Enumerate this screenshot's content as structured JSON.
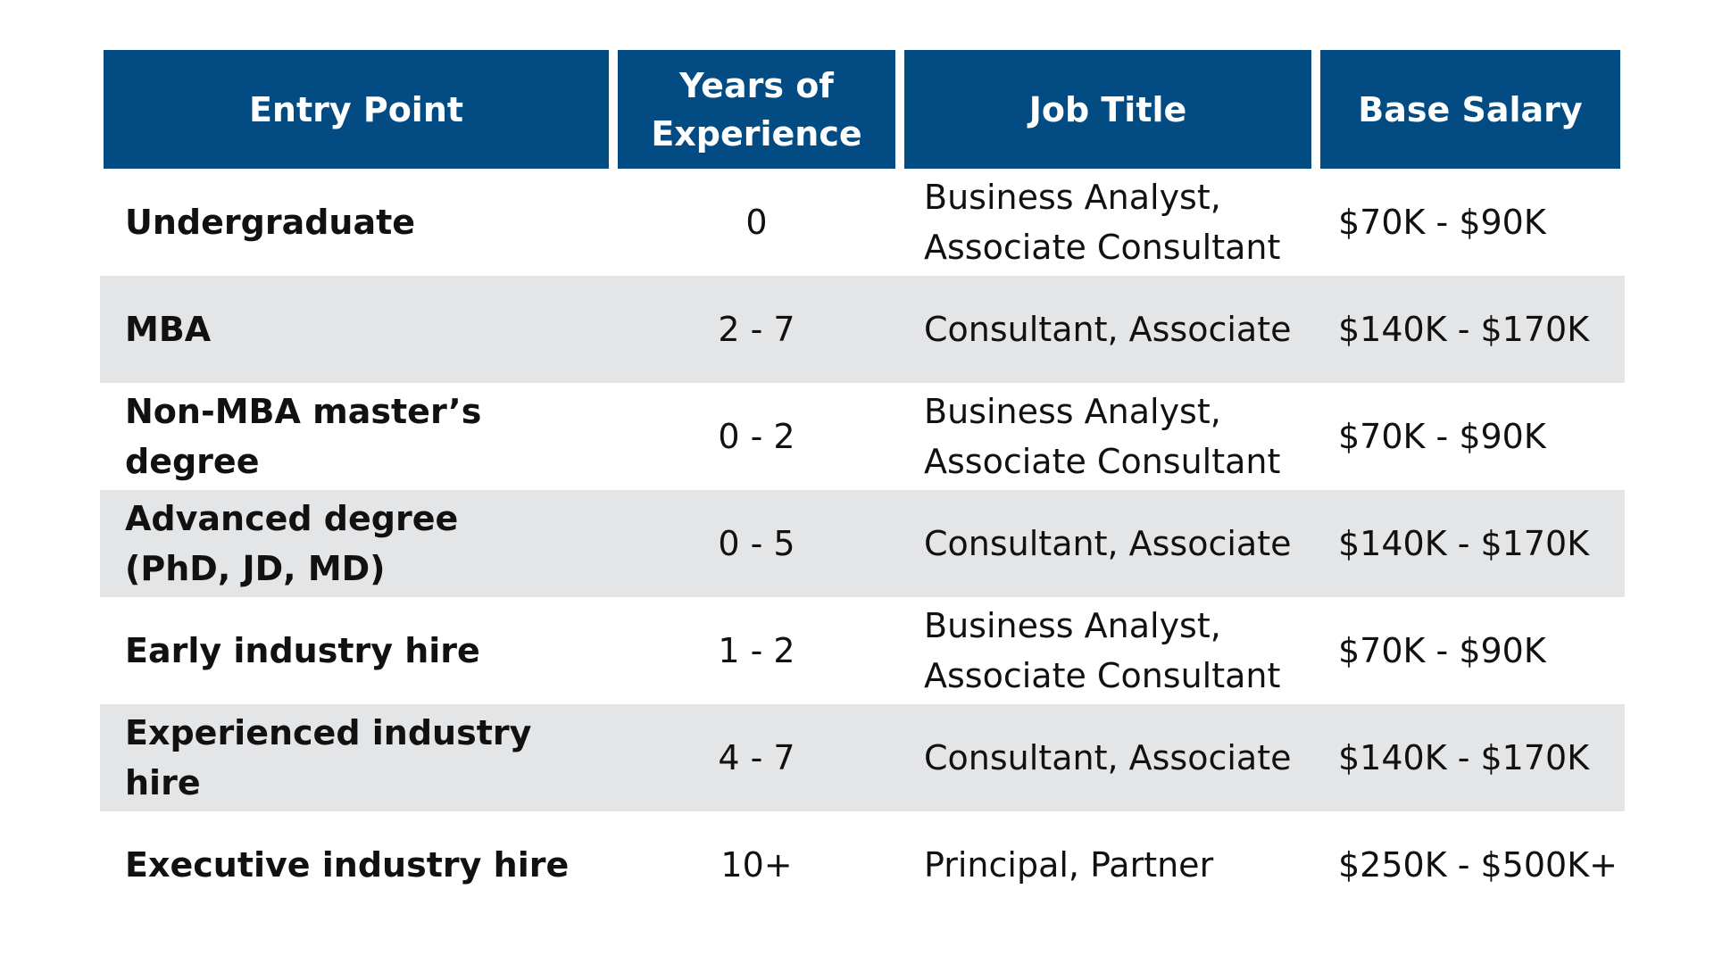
{
  "chart_data": {
    "type": "table",
    "columns": [
      "Entry Point",
      "Years of Experience",
      "Job Title",
      "Base Salary"
    ],
    "rows": [
      {
        "entry_point": "Undergraduate",
        "years": "0",
        "job_title": "Business Analyst,\nAssociate Consultant",
        "salary": "$70K - $90K"
      },
      {
        "entry_point": "MBA",
        "years": "2 - 7",
        "job_title": "Consultant, Associate",
        "salary": "$140K - $170K"
      },
      {
        "entry_point": "Non-MBA master’s degree",
        "years": "0 - 2",
        "job_title": "Business Analyst,\nAssociate Consultant",
        "salary": "$70K - $90K"
      },
      {
        "entry_point": "Advanced degree\n(PhD, JD, MD)",
        "years": "0 - 5",
        "job_title": "Consultant, Associate",
        "salary": "$140K - $170K"
      },
      {
        "entry_point": "Early industry hire",
        "years": "1 - 2",
        "job_title": "Business Analyst,\nAssociate Consultant",
        "salary": "$70K - $90K"
      },
      {
        "entry_point": "Experienced industry hire",
        "years": "4 - 7",
        "job_title": "Consultant, Associate",
        "salary": "$140K - $170K"
      },
      {
        "entry_point": "Executive industry hire",
        "years": "10+",
        "job_title": "Principal, Partner",
        "salary": "$250K - $500K+"
      }
    ],
    "colors": {
      "header_background": "#034c83",
      "header_text": "#ffffff",
      "shaded_row": "#e4e5e7",
      "body_text": "#111111"
    }
  }
}
